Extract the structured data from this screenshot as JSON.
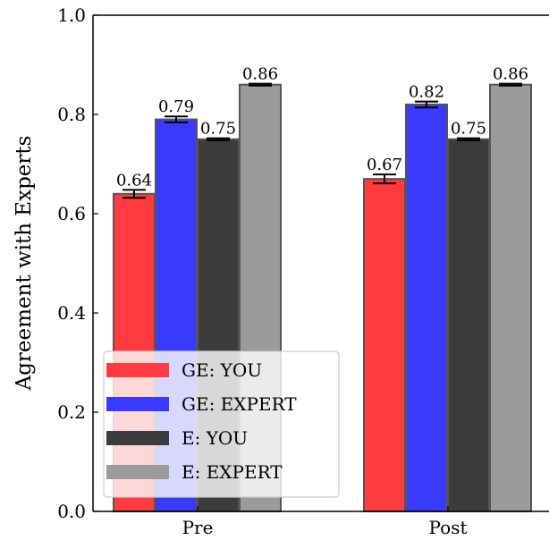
{
  "chart_data": {
    "type": "bar",
    "ylabel": "Agreement with Experts",
    "ylim": [
      0.0,
      1.0
    ],
    "yticks": [
      "0.0",
      "0.2",
      "0.4",
      "0.6",
      "0.8",
      "1.0"
    ],
    "categories": [
      "Pre",
      "Post"
    ],
    "series": [
      {
        "name": "GE: YOU",
        "values": [
          0.64,
          0.67
        ],
        "labels": [
          "0.64",
          "0.67"
        ],
        "errors": [
          0.008,
          0.009
        ],
        "color": "#ff3b3f"
      },
      {
        "name": "GE: EXPERT",
        "values": [
          0.79,
          0.82
        ],
        "labels": [
          "0.79",
          "0.82"
        ],
        "errors": [
          0.006,
          0.006
        ],
        "color": "#3a3aff"
      },
      {
        "name": "E: YOU",
        "values": [
          0.75,
          0.75
        ],
        "labels": [
          "0.75",
          "0.75"
        ],
        "errors": [
          0.002,
          0.002
        ],
        "color": "#3c3c3c"
      },
      {
        "name": "E: EXPERT",
        "values": [
          0.86,
          0.86
        ],
        "labels": [
          "0.86",
          "0.86"
        ],
        "errors": [
          0.002,
          0.002
        ],
        "color": "#9b9b9b"
      }
    ],
    "legend": "lower-left",
    "grid": false
  }
}
